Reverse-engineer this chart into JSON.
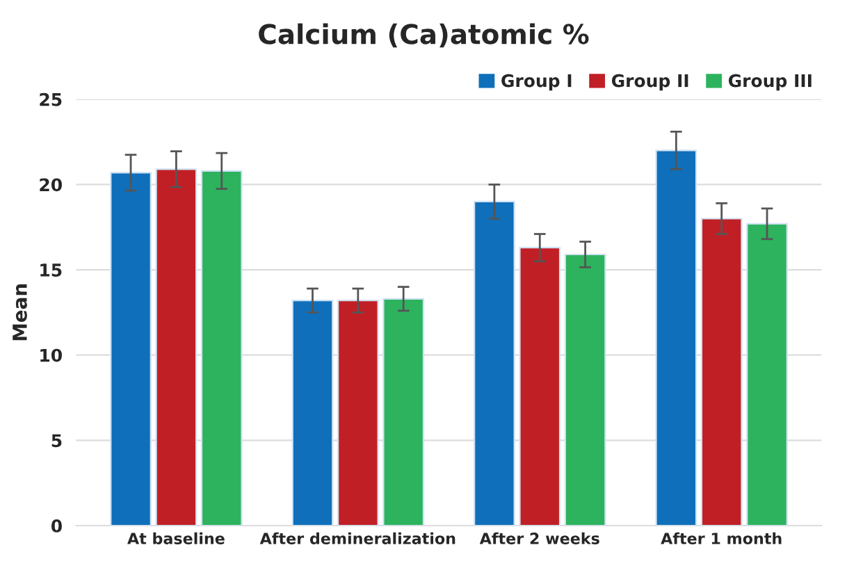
{
  "chart_data": {
    "type": "bar",
    "title": "Calcium (Ca)atomic %",
    "ylabel": "Mean",
    "categories": [
      "At baseline",
      "After demineralization",
      "After 2 weeks",
      "After 1 month"
    ],
    "series": [
      {
        "name": "Group I",
        "color": "#0f6fba",
        "values": [
          20.7,
          13.2,
          19.0,
          22.0
        ],
        "errors": [
          1.05,
          0.7,
          1.0,
          1.1
        ]
      },
      {
        "name": "Group II",
        "color": "#c11f26",
        "values": [
          20.9,
          13.2,
          16.3,
          18.0
        ],
        "errors": [
          1.05,
          0.7,
          0.8,
          0.9
        ]
      },
      {
        "name": "Group III",
        "color": "#2db35d",
        "values": [
          20.8,
          13.3,
          15.9,
          17.7
        ],
        "errors": [
          1.05,
          0.7,
          0.75,
          0.9
        ]
      }
    ],
    "ylim": [
      0,
      25
    ],
    "yticks": [
      0,
      5,
      10,
      15,
      20,
      25
    ],
    "grid": "y",
    "legend": "top right"
  }
}
